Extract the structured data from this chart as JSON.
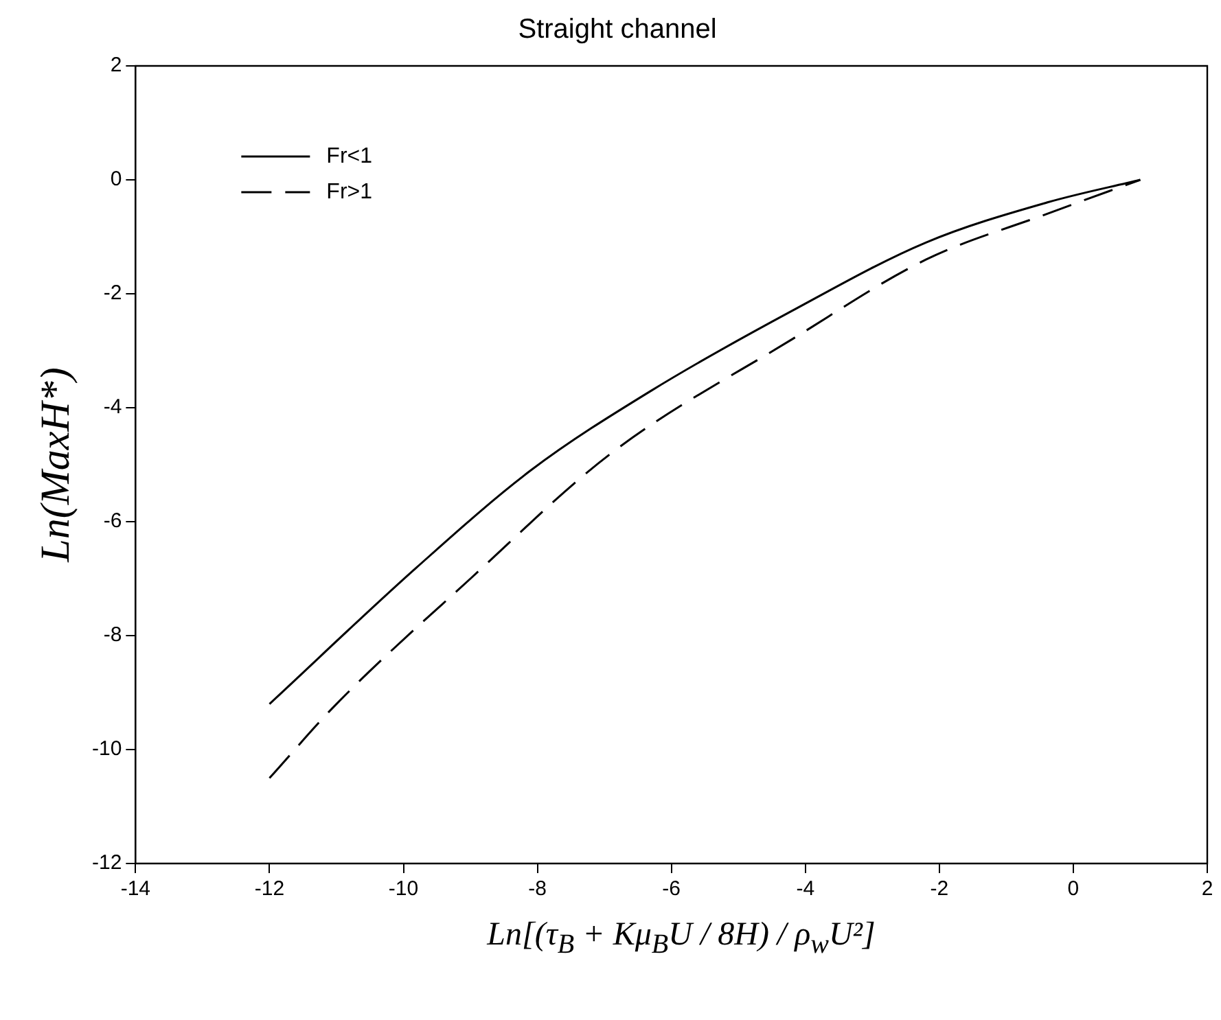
{
  "chart_data": {
    "type": "line",
    "title": "Straight channel",
    "xlabel": "Ln[(τ$_{B}$ + Kμ$_{B}$U / 8H) / ρ$_{w}$U²]",
    "ylabel": "Ln(MaxH*)",
    "series": [
      {
        "name": "Fr<1",
        "color": "#000000",
        "line_style": "solid",
        "x": [
          -12,
          -9.8,
          -8.1,
          -6.3,
          -4.2,
          -2.2,
          -0.4,
          1
        ],
        "values": [
          -9.2,
          -6.8,
          -5.1,
          -3.7,
          -2.3,
          -1.1,
          -0.4,
          0
        ]
      },
      {
        "name": "Fr>1",
        "color": "#000000",
        "line_style": "dashed",
        "x": [
          -12,
          -11,
          -9,
          -6.9,
          -4.2,
          -2.2,
          -0.4,
          1
        ],
        "values": [
          -10.5,
          -9.2,
          -7.0,
          -4.8,
          -2.8,
          -1.4,
          -0.6,
          0
        ]
      }
    ],
    "xlim": [
      -14,
      2
    ],
    "xticks": [
      -14,
      -12,
      -10,
      -8,
      -6,
      -4,
      -2,
      0,
      2
    ],
    "ylim": [
      -12,
      2
    ],
    "yticks": [
      -12,
      -10,
      -8,
      -6,
      -4,
      -2,
      0,
      2
    ],
    "grid": false,
    "legend": "top left",
    "marker": "none"
  }
}
